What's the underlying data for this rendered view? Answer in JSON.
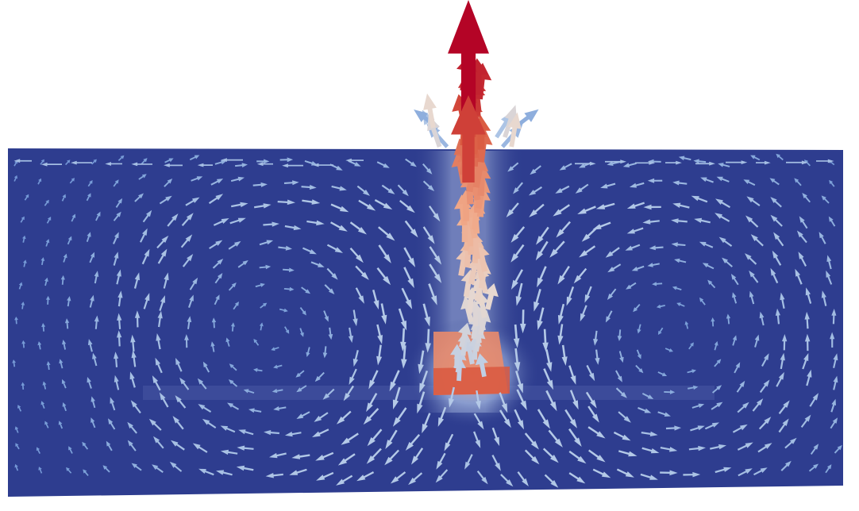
{
  "scene": {
    "kind": "3d-vector-field-render",
    "background_color": "#ffffff",
    "domain_color": "#2e3d8f",
    "colormap": [
      "#3b4cc0",
      "#7a9fd8",
      "#b9cde8",
      "#e8d8cf",
      "#f0a888",
      "#d9583f",
      "#b40426"
    ],
    "glyph": "arrow-icon"
  }
}
